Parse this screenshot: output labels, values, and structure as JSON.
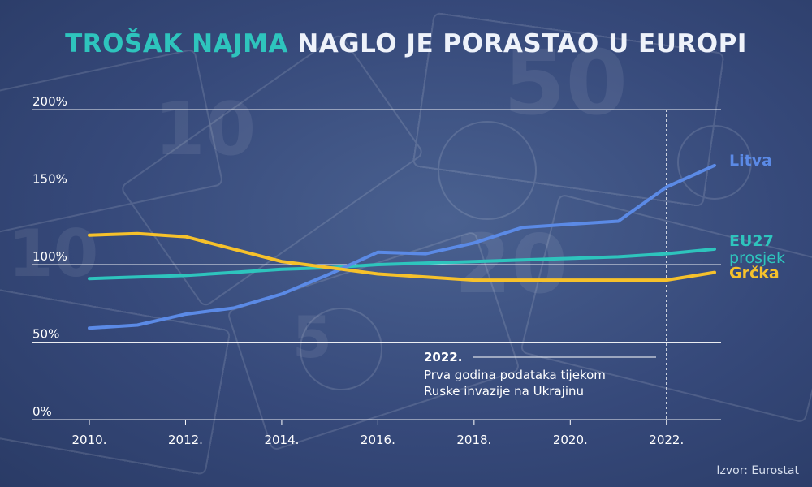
{
  "title": {
    "highlight": "TROŠAK NAJMA",
    "rest": "NAGLO JE PORASTAO U EUROPI"
  },
  "source": "Izvor: Eurostat",
  "colors": {
    "background": "#36497a",
    "litva": "#5b8ae6",
    "eu27": "#2ec4bd",
    "grcka": "#f6c12b",
    "title_highlight": "#2ec4bd",
    "gridline": "#ffffff"
  },
  "annotation": {
    "year": "2022.",
    "line1": "Prva godina podataka tijekom",
    "line2": "Ruske invazije na Ukrajinu"
  },
  "chart_data": {
    "type": "line",
    "x": [
      2010,
      2011,
      2012,
      2013,
      2014,
      2015,
      2016,
      2017,
      2018,
      2019,
      2020,
      2021,
      2022,
      2023
    ],
    "xticks": [
      "2010.",
      "2012.",
      "2014.",
      "2016.",
      "2018.",
      "2020.",
      "2022."
    ],
    "xtick_values": [
      2010,
      2012,
      2014,
      2016,
      2018,
      2020,
      2022
    ],
    "yticks": [
      "0%",
      "50%",
      "100%",
      "150%",
      "200%"
    ],
    "ytick_values": [
      0,
      50,
      100,
      150,
      200
    ],
    "ylim": [
      0,
      200
    ],
    "xlim": [
      2010,
      2023
    ],
    "grid": true,
    "marker_line_x": 2022,
    "series": [
      {
        "name": "Litva",
        "label_lines": [
          "Litva"
        ],
        "color": "#5b8ae6",
        "values": [
          59,
          61,
          68,
          72,
          81,
          94,
          108,
          107,
          114,
          124,
          126,
          128,
          150,
          164
        ]
      },
      {
        "name": "EU27 prosjek",
        "label_lines": [
          "EU27",
          "prosjek"
        ],
        "color": "#2ec4bd",
        "values": [
          91,
          92,
          93,
          95,
          97,
          98,
          100,
          101,
          102,
          103,
          104,
          105,
          107,
          110
        ]
      },
      {
        "name": "Grčka",
        "label_lines": [
          "Grčka"
        ],
        "color": "#f6c12b",
        "values": [
          119,
          120,
          118,
          110,
          102,
          98,
          94,
          92,
          90,
          90,
          90,
          90,
          90,
          95
        ]
      }
    ]
  }
}
